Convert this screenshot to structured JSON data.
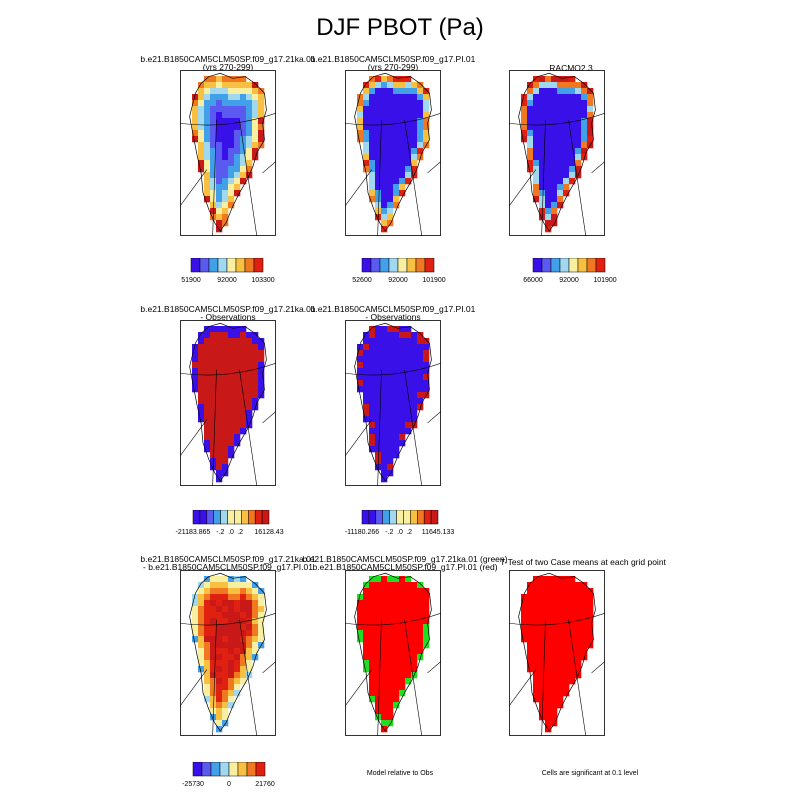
{
  "title": "DJF PBOT (Pa)",
  "panels": [
    {
      "id": "p1",
      "title1": "b.e21.B1850CAM5CLM50SP.f09_g17.21ka.01",
      "title2": "(yrs 270-299)",
      "scheme": "abs_cool"
    },
    {
      "id": "p2",
      "title1": "b.e21.B1850CAM5CLM50SP.f09_g17.PI.01",
      "title2": "(yrs 270-299)",
      "scheme": "abs_warm"
    },
    {
      "id": "p3",
      "title1": "RACMO2.3",
      "title2": "",
      "scheme": "abs_racmo"
    },
    {
      "id": "p4",
      "title1": "b.e21.B1850CAM5CLM50SP.f09_g17.21ka.01",
      "title2": "- Observations",
      "scheme": "diff_red"
    },
    {
      "id": "p5",
      "title1": "b.e21.B1850CAM5CLM50SP.f09_g17.PI.01",
      "title2": "- Observations",
      "scheme": "diff_blue"
    },
    {
      "id": "p7",
      "title1": "b.e21.B1850CAM5CLM50SP.f09_g17.21ka.01",
      "title2": "- b.e21.B1850CAM5CLM50SP.f09_g17.PI.01",
      "scheme": "case_diff"
    },
    {
      "id": "p8",
      "title1": "b.e21.B1850CAM5CLM50SP.f09_g17.21ka.01 (green)",
      "title2": "b.e21.B1850CAM5CLM50SP.f09_g17.PI.01 (red)",
      "scheme": "green_red"
    },
    {
      "id": "p9",
      "title1": "T-Test of two Case means at each grid point",
      "title2": "",
      "scheme": "signif"
    }
  ],
  "colorbars": {
    "abs1": {
      "labels": [
        "51900",
        "92000",
        "103300"
      ]
    },
    "abs2": {
      "labels": [
        "52600",
        "92000",
        "101900"
      ]
    },
    "abs3": {
      "labels": [
        "66000",
        "92000",
        "101900"
      ]
    },
    "diff1": {
      "labels": [
        "-21183.865",
        "-.2",
        ".0",
        ".2",
        "16128.43"
      ]
    },
    "diff2": {
      "labels": [
        "-11180.266",
        "-.2",
        ".0",
        ".2",
        "11645.133"
      ]
    },
    "diff3": {
      "labels": [
        "-25730",
        "0",
        "21760"
      ]
    }
  },
  "notes": {
    "model_relative": "Model relative to Obs",
    "significance": "Cells are significant at 0.1 level"
  },
  "colors": {
    "palette": [
      "#3a10e8",
      "#5a5af0",
      "#41a0e8",
      "#a0d8f0",
      "#f8f0a0",
      "#f8c040",
      "#f07820",
      "#e02010",
      "#c81818"
    ],
    "green": "#22dd22",
    "signif_red": "#ff0000"
  },
  "chart_data": {
    "type": "heatmap",
    "variable": "DJF PBOT (Pa)",
    "grid": "3x3 panel map of Greenland (8 panels shown)"
  }
}
